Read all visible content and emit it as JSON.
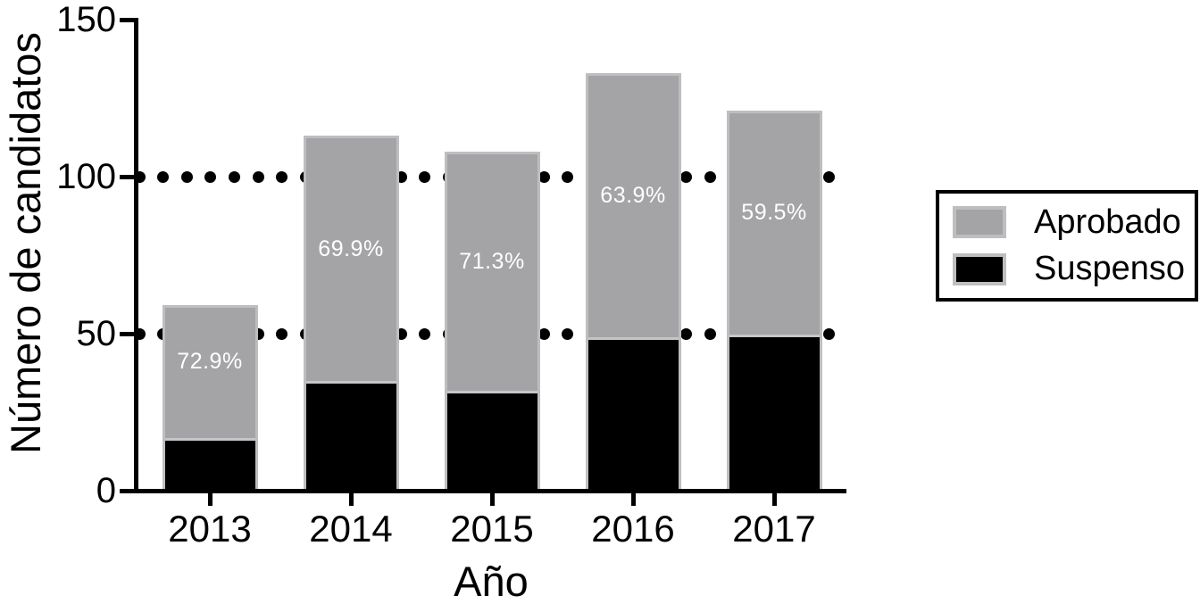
{
  "figure": {
    "background": "#ffffff"
  },
  "chart_data": {
    "type": "bar",
    "stacked": true,
    "title": "",
    "xlabel": "Año",
    "ylabel": "Número de candidatos",
    "categories": [
      "2013",
      "2014",
      "2015",
      "2016",
      "2017"
    ],
    "series": [
      {
        "name": "Aprobado",
        "color": "#a4a4a6",
        "values": [
          43,
          79,
          77,
          85,
          72
        ]
      },
      {
        "name": "Suspenso",
        "color": "#000000",
        "values": [
          16,
          34,
          31,
          48,
          49
        ]
      }
    ],
    "totals": [
      59,
      113,
      108,
      133,
      121
    ],
    "bar_labels": [
      "72.9%",
      "69.9%",
      "71.3%",
      "63.9%",
      "59.5%"
    ],
    "bar_label_color": "#ffffff",
    "yticks": [
      0,
      50,
      100,
      150
    ],
    "ylim": [
      0,
      150
    ],
    "gridlines": {
      "style": "dotted",
      "values": [
        50,
        100
      ],
      "color": "#000000"
    },
    "legend": {
      "position": "right"
    },
    "bar_border_color": "#bebec0",
    "axis_color": "#000000"
  }
}
